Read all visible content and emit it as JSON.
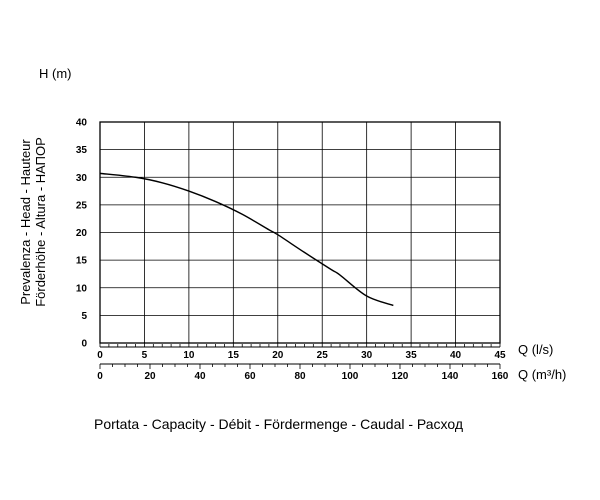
{
  "chart_data": {
    "type": "line",
    "y_axis_label": "H (m)",
    "y_title_lines": [
      "Prevalenza - Head - Hauteur",
      "Förderhöhe - Altura - НАПОР"
    ],
    "caption": "Portata - Capacity - Débit - Fördermenge - Caudal - Расход",
    "x_axis_ls": {
      "unit_label": "Q (l/s)",
      "range": [
        0,
        45
      ],
      "ticks": [
        0,
        5,
        10,
        15,
        20,
        25,
        30,
        35,
        40,
        45
      ],
      "tick_labels": [
        "0",
        "5",
        "10",
        "15",
        "20",
        "25",
        "30",
        "35",
        "40",
        "45"
      ]
    },
    "x_axis_m3h": {
      "unit_label": "Q (m³/h)",
      "range": [
        0,
        160
      ],
      "ticks": [
        0,
        20,
        40,
        60,
        80,
        100,
        120,
        140,
        160
      ],
      "tick_labels": [
        "0",
        "20",
        "40",
        "60",
        "80",
        "100",
        "120",
        "140",
        "160"
      ]
    },
    "y_axis": {
      "range": [
        0,
        40
      ],
      "ticks": [
        0,
        5,
        10,
        15,
        20,
        25,
        30,
        35,
        40
      ],
      "tick_labels": [
        "0",
        "5",
        "10",
        "15",
        "20",
        "25",
        "30",
        "35",
        "40"
      ]
    },
    "grid": true,
    "series": [
      {
        "x": [
          0,
          4,
          7,
          10,
          13,
          16,
          19,
          20,
          23,
          26,
          27,
          30,
          33
        ],
        "y": [
          30.7,
          30.0,
          29.0,
          27.5,
          25.6,
          23.3,
          20.5,
          19.6,
          16.4,
          13.3,
          12.3,
          8.5,
          6.8
        ],
        "color": "#000000"
      }
    ]
  }
}
